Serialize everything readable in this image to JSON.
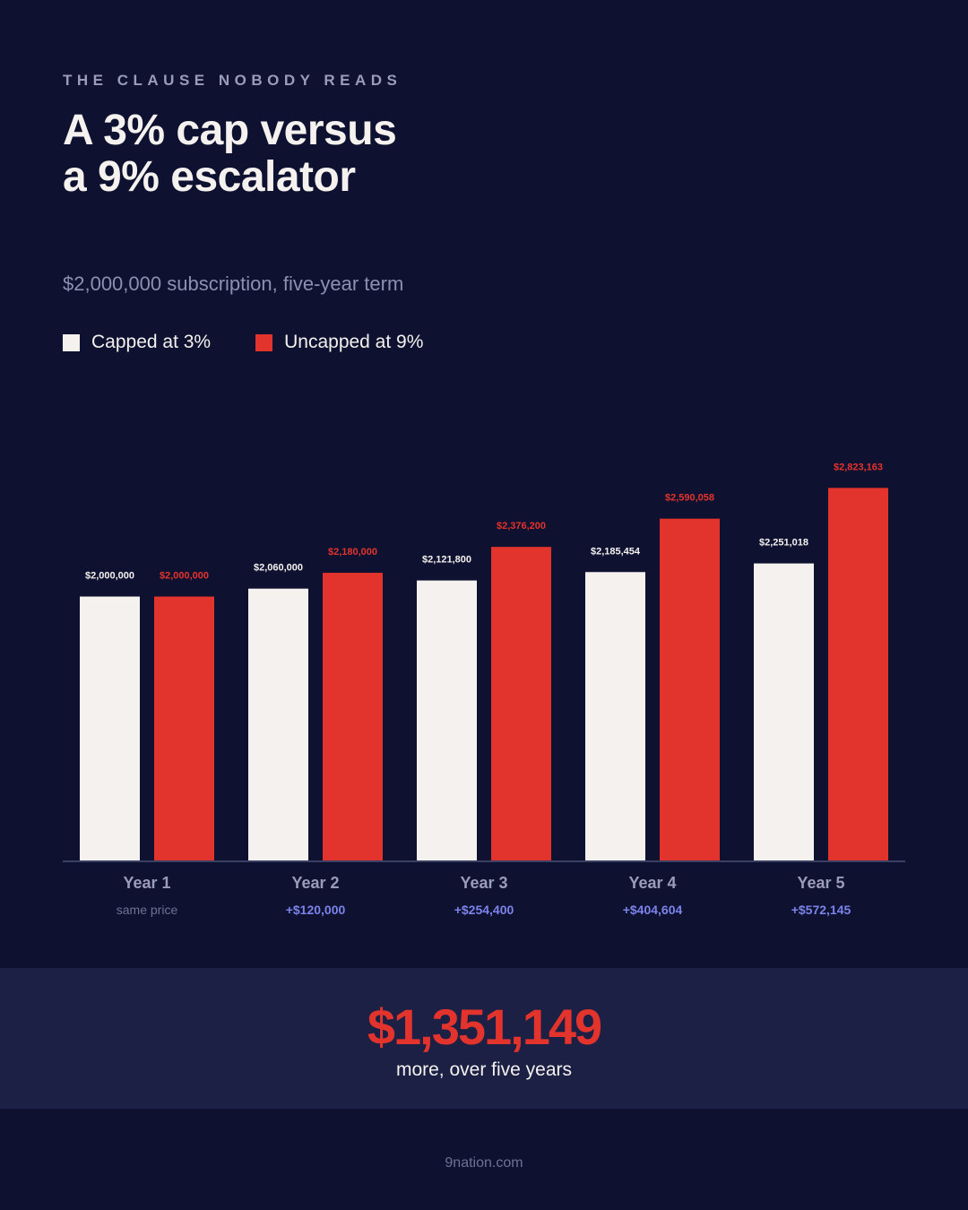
{
  "header": {
    "eyebrow": "THE CLAUSE NOBODY READS",
    "title_line1": "A 3% cap versus",
    "title_line2": "a 9% escalator",
    "subtitle": "$2,000,000 subscription, five-year term"
  },
  "legend": [
    {
      "label": "Capped at 3%",
      "color": "#f4f1ee"
    },
    {
      "label": "Uncapped at 9%",
      "color": "#e3332d"
    }
  ],
  "chart_data": {
    "type": "bar",
    "categories": [
      "Year 1",
      "Year 2",
      "Year 3",
      "Year 4",
      "Year 5"
    ],
    "series": [
      {
        "name": "Capped at 3%",
        "color": "#f4f1ee",
        "values": [
          2000000,
          2060000,
          2121800,
          2185454,
          2251018
        ],
        "labels": [
          "$2,000,000",
          "$2,060,000",
          "$2,121,800",
          "$2,185,454",
          "$2,251,018"
        ]
      },
      {
        "name": "Uncapped at 9%",
        "color": "#e3332d",
        "values": [
          2000000,
          2180000,
          2376200,
          2590058,
          2823163
        ],
        "labels": [
          "$2,000,000",
          "$2,180,000",
          "$2,376,200",
          "$2,590,058",
          "$2,823,163"
        ]
      }
    ],
    "differences": [
      "same price",
      "+$120,000",
      "+$254,400",
      "+$404,604",
      "+$572,145"
    ],
    "ylim": [
      0,
      3600000
    ],
    "grid": false,
    "legend_position": "top-left"
  },
  "summary": {
    "value": "$1,351,149",
    "text": "more, over five years"
  },
  "footer": {
    "source": "9nation.com"
  },
  "colors": {
    "background": "#0e1130",
    "banner": "#1b2044",
    "capped": "#f4f1ee",
    "uncapped": "#e3332d",
    "difference": "#7c83ea",
    "muted": "#9a9cb8"
  }
}
